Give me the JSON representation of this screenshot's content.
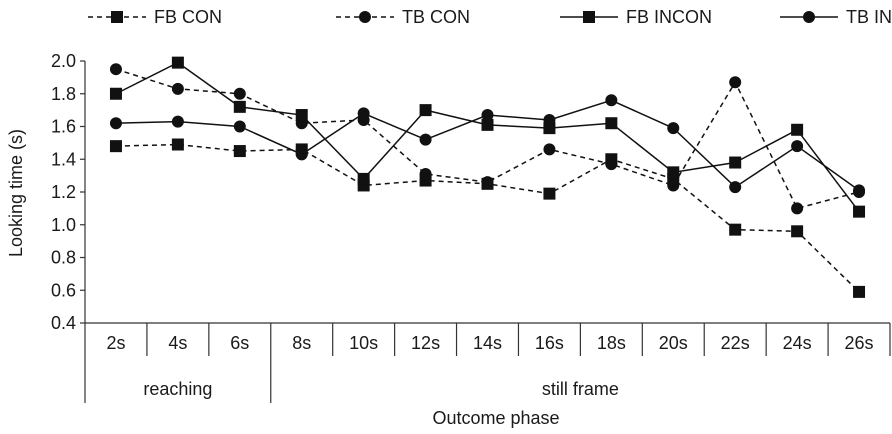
{
  "chart_data": {
    "type": "line",
    "xlabel": "Outcome phase",
    "ylabel": "Looking time (s)",
    "ylim": [
      0.4,
      2.0
    ],
    "yticks": [
      "0.4",
      "0.6",
      "0.8",
      "1.0",
      "1.2",
      "1.4",
      "1.6",
      "1.8",
      "2.0"
    ],
    "categories": [
      "2s",
      "4s",
      "6s",
      "8s",
      "10s",
      "12s",
      "14s",
      "16s",
      "18s",
      "20s",
      "22s",
      "24s",
      "26s"
    ],
    "groups": [
      {
        "label": "reaching",
        "count": 3
      },
      {
        "label": "still frame",
        "count": 10
      }
    ],
    "grid": false,
    "legend_position": "top",
    "series": [
      {
        "name": "FB CON",
        "marker": "square",
        "dash": true,
        "values": [
          1.48,
          1.49,
          1.45,
          1.46,
          1.24,
          1.27,
          1.25,
          1.19,
          1.4,
          1.28,
          0.97,
          0.96,
          0.59
        ]
      },
      {
        "name": "TB CON",
        "marker": "circle",
        "dash": true,
        "values": [
          1.95,
          1.83,
          1.8,
          1.62,
          1.64,
          1.31,
          1.26,
          1.46,
          1.37,
          1.24,
          1.87,
          1.1,
          1.2
        ]
      },
      {
        "name": "FB INCON",
        "marker": "square",
        "dash": false,
        "values": [
          1.8,
          1.99,
          1.72,
          1.67,
          1.28,
          1.7,
          1.61,
          1.59,
          1.62,
          1.32,
          1.38,
          1.58,
          1.08
        ]
      },
      {
        "name": "TB INCON",
        "marker": "circle",
        "dash": false,
        "values": [
          1.62,
          1.63,
          1.6,
          1.43,
          1.68,
          1.52,
          1.67,
          1.64,
          1.76,
          1.59,
          1.23,
          1.48,
          1.21
        ]
      }
    ],
    "colors": {
      "line": "#111111",
      "axis": "#333333"
    }
  }
}
